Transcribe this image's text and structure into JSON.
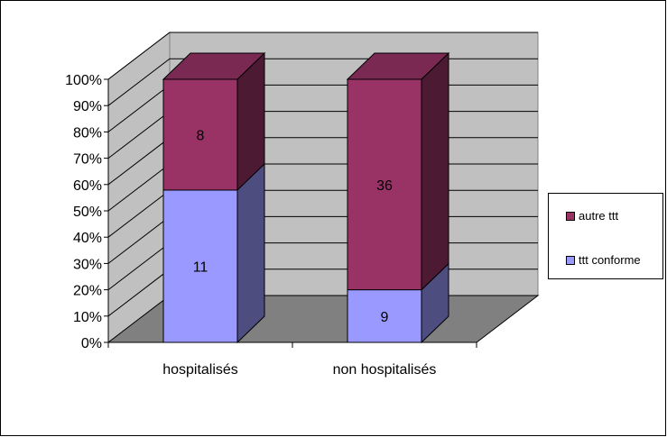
{
  "chart_data": {
    "type": "bar",
    "stacked": true,
    "percent_stacked": true,
    "three_d": true,
    "categories": [
      "hospitalisés",
      "non hospitalisés"
    ],
    "series": [
      {
        "name": "ttt conforme",
        "values": [
          11,
          9
        ],
        "color": "#9999ff",
        "side_color": "#4d4d80",
        "top_color": "#cccdfd"
      },
      {
        "name": "autre ttt",
        "values": [
          8,
          36
        ],
        "color": "#993366",
        "side_color": "#4d1a33",
        "top_color": "#7a2952"
      }
    ],
    "y_ticks": [
      "0%",
      "10%",
      "20%",
      "30%",
      "40%",
      "50%",
      "60%",
      "70%",
      "80%",
      "90%",
      "100%"
    ],
    "ylim": [
      0,
      100
    ],
    "grid": true,
    "legend_position": "right",
    "wall_color": "#c0c0c0",
    "floor_color": "#808080"
  }
}
